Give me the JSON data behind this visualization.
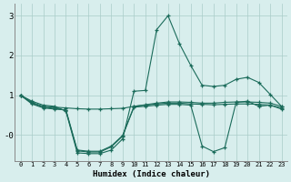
{
  "xlabel": "Humidex (Indice chaleur)",
  "bg_color": "#d8eeed",
  "grid_color": "#aaccc8",
  "line_color": "#1a6b5a",
  "xlim": [
    -0.5,
    23.5
  ],
  "ylim": [
    -0.65,
    3.3
  ],
  "xticks": [
    0,
    1,
    2,
    3,
    4,
    5,
    6,
    7,
    8,
    9,
    10,
    11,
    12,
    13,
    14,
    15,
    16,
    17,
    18,
    19,
    20,
    21,
    22,
    23
  ],
  "yticks": [
    0,
    1,
    2,
    3
  ],
  "ytick_labels": [
    "-0",
    "1",
    "2",
    "3"
  ],
  "lines": [
    {
      "x": [
        0,
        1,
        2,
        3,
        4,
        5,
        6,
        7,
        8,
        9,
        10,
        11,
        12,
        13,
        14,
        15,
        16,
        17,
        18,
        19,
        20,
        21,
        22,
        23
      ],
      "y": [
        1.0,
        0.85,
        0.75,
        0.72,
        0.6,
        -0.45,
        -0.47,
        -0.47,
        -0.38,
        -0.1,
        1.1,
        1.12,
        2.65,
        3.0,
        2.3,
        1.75,
        1.25,
        1.22,
        1.25,
        1.4,
        1.45,
        1.32,
        1.02,
        0.72
      ]
    },
    {
      "x": [
        0,
        1,
        2,
        3,
        4,
        5,
        6,
        7,
        8,
        9,
        10,
        11,
        12,
        13,
        14,
        15,
        16,
        17,
        18,
        19,
        20,
        21,
        22,
        23
      ],
      "y": [
        1.0,
        0.82,
        0.72,
        0.7,
        0.68,
        0.66,
        0.65,
        0.65,
        0.66,
        0.67,
        0.72,
        0.76,
        0.8,
        0.83,
        0.83,
        0.82,
        0.8,
        0.8,
        0.82,
        0.83,
        0.83,
        0.82,
        0.8,
        0.72
      ]
    },
    {
      "x": [
        0,
        1,
        2,
        3,
        4,
        5,
        6,
        7,
        8,
        9,
        10,
        11,
        12,
        13,
        14,
        15,
        16,
        17,
        18,
        19,
        20,
        21,
        22,
        23
      ],
      "y": [
        1.0,
        0.8,
        0.7,
        0.67,
        0.62,
        -0.4,
        -0.43,
        -0.43,
        -0.3,
        -0.03,
        0.72,
        0.75,
        0.78,
        0.8,
        0.8,
        0.78,
        0.77,
        0.76,
        0.77,
        0.78,
        0.78,
        0.77,
        0.75,
        0.68
      ]
    },
    {
      "x": [
        0,
        1,
        2,
        3,
        4,
        5,
        6,
        7,
        8,
        9,
        10,
        11,
        12,
        13,
        14,
        15,
        16,
        17,
        18,
        19,
        20,
        21,
        22,
        23
      ],
      "y": [
        1.0,
        0.78,
        0.68,
        0.65,
        0.63,
        -0.38,
        -0.41,
        -0.41,
        -0.28,
        -0.01,
        0.7,
        0.72,
        0.75,
        0.77,
        0.77,
        0.75,
        -0.28,
        -0.42,
        -0.32,
        0.82,
        0.85,
        0.72,
        0.75,
        0.65
      ]
    }
  ]
}
